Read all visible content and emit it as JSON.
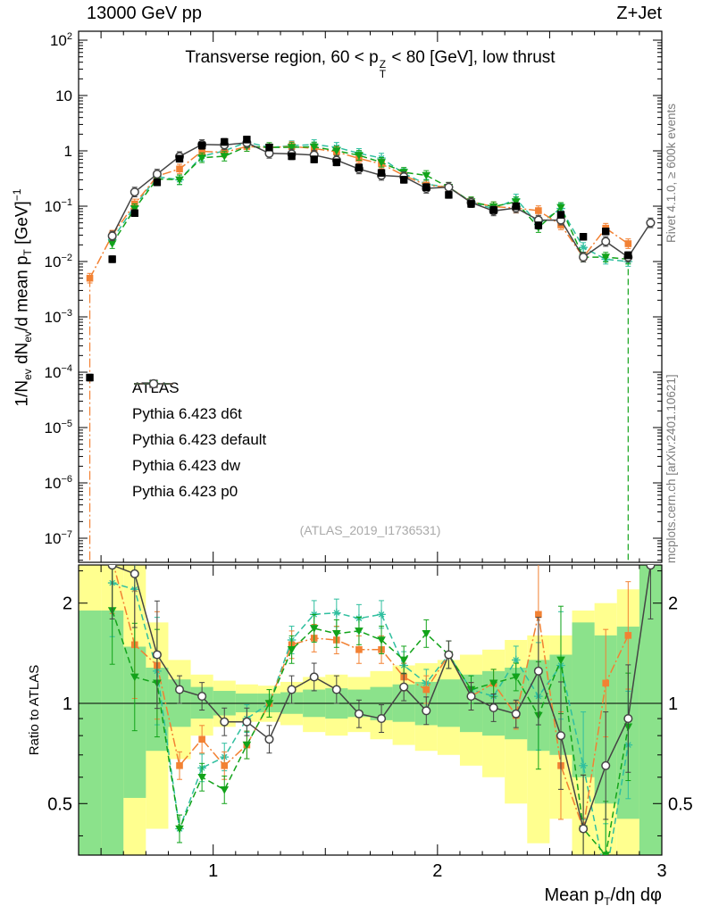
{
  "header": {
    "left": "13000 GeV pp",
    "right": "Z+Jet"
  },
  "titles": {
    "panel_title": "Transverse region, 60 < pTZ < 80 [GeV], low thrust",
    "panel_title_parts": [
      {
        "t": "Transverse region, 60 < p"
      },
      {
        "s": "stack",
        "top": "Z",
        "bottom": "T"
      },
      {
        "t": " < 80 [GeV], low thrust"
      }
    ],
    "watermark": "(ATLAS_2019_I1736531)",
    "rivet_note": "Rivet 4.1.0, ≥ 600k events",
    "mcplots_note": "mcplots.cern.ch [arXiv:2401.10621]"
  },
  "axes": {
    "x": {
      "label": "Mean pT/dη dφ",
      "label_parts": [
        {
          "t": "Mean p"
        },
        {
          "t": "T",
          "s": "sub"
        },
        {
          "t": "/dη dφ"
        }
      ],
      "min": 0.4,
      "max": 3.0,
      "major_ticks": [
        1,
        2,
        3
      ]
    },
    "y_main": {
      "label": "1/Nev dNev/d mean pT [GeV]−1",
      "label_parts": [
        {
          "t": "1/N"
        },
        {
          "t": "ev",
          "s": "sub"
        },
        {
          "t": " dN"
        },
        {
          "t": "ev",
          "s": "sub"
        },
        {
          "t": "/d mean p"
        },
        {
          "t": "T",
          "s": "sub"
        },
        {
          "t": " [GeV]"
        },
        {
          "t": "−1",
          "s": "sup"
        }
      ],
      "scale": "log",
      "tick_exponents": [
        2,
        1,
        0,
        -1,
        -2,
        -3,
        -4,
        -5,
        -6,
        -7
      ]
    },
    "y_ratio": {
      "label": "Ratio to ATLAS",
      "scale": "log",
      "min": 0.35,
      "max": 2.6,
      "ticks": [
        {
          "v": 0.5,
          "label": "0.5"
        },
        {
          "v": 1,
          "label": "1"
        },
        {
          "v": 2,
          "label": "2"
        }
      ],
      "minor_ticks": [
        0.4,
        0.6,
        0.7,
        0.8,
        0.9,
        2.5
      ]
    }
  },
  "colors": {
    "band_yellow": "#ffff8f",
    "band_green": "#8be28b",
    "atlas": "#000000",
    "d6t": "#2fbf9f",
    "default": "#f28133",
    "dw": "#12a31a",
    "p0": "#444444",
    "frame": "#000000",
    "note_gray": "#7d7d7d"
  },
  "chart_data": {
    "type": "line",
    "title": "Transverse region, 60 < pTZ < 80 [GeV], low thrust",
    "xlabel": "Mean pT/dη dφ",
    "ylabel": "1/Nev dNev/d mean pT [GeV]−1",
    "ratio_ylabel": "Ratio to ATLAS",
    "xlim": [
      0.4,
      3.0
    ],
    "ylim_main": [
      4e-08,
      150
    ],
    "ylim_ratio": [
      0.35,
      2.6
    ],
    "x": [
      0.45,
      0.55,
      0.65,
      0.75,
      0.85,
      0.95,
      1.05,
      1.15,
      1.25,
      1.35,
      1.45,
      1.55,
      1.65,
      1.75,
      1.85,
      1.95,
      2.05,
      2.15,
      2.25,
      2.35,
      2.45,
      2.55,
      2.65,
      2.75,
      2.85,
      2.95
    ],
    "reference": {
      "name": "ATLAS",
      "key": "atlas",
      "color": "#000000",
      "line": "none",
      "marker": "filled-square",
      "values": [
        8e-05,
        0.011,
        0.075,
        0.27,
        0.72,
        1.25,
        1.45,
        1.6,
        1.15,
        0.8,
        0.7,
        0.62,
        0.5,
        0.4,
        0.3,
        0.22,
        0.16,
        0.11,
        0.085,
        0.1,
        0.045,
        0.07,
        0.028,
        0.035,
        0.013,
        null
      ]
    },
    "series": [
      {
        "name": "Pythia 6.423 d6t",
        "key": "d6t",
        "color": "#2fbf9f",
        "line": "dashed",
        "marker": "asterisk",
        "values": [
          null,
          0.025,
          0.1,
          0.34,
          0.3,
          0.8,
          1.0,
          1.44,
          1.15,
          1.24,
          1.3,
          1.16,
          0.9,
          0.74,
          0.39,
          0.25,
          0.22,
          0.12,
          0.089,
          0.135,
          0.047,
          0.091,
          0.018,
          0.011,
          0.01,
          null
        ],
        "ratio": [
          null,
          2.3,
          2.2,
          1.25,
          0.42,
          0.64,
          0.69,
          0.9,
          1.0,
          1.55,
          1.85,
          1.87,
          1.8,
          1.85,
          1.3,
          1.15,
          1.4,
          1.1,
          1.05,
          1.35,
          1.05,
          1.3,
          0.65,
          0.3,
          0.75,
          null
        ]
      },
      {
        "name": "Pythia 6.423 default",
        "key": "default",
        "color": "#f28133",
        "line": "dashdot",
        "marker": "filled-square",
        "values": [
          0.005,
          0.03,
          0.11,
          0.35,
          0.47,
          0.98,
          0.94,
          1.2,
          1.15,
          1.2,
          1.1,
          0.96,
          0.73,
          0.58,
          0.36,
          0.24,
          0.22,
          0.12,
          0.098,
          0.092,
          0.083,
          0.046,
          0.012,
          0.04,
          0.021,
          null
        ],
        "ratio": [
          null,
          2.7,
          1.5,
          1.3,
          0.65,
          0.78,
          0.65,
          0.75,
          1.0,
          1.5,
          1.57,
          1.55,
          1.45,
          1.45,
          1.2,
          1.1,
          1.4,
          1.05,
          1.15,
          0.92,
          1.85,
          0.65,
          0.42,
          1.15,
          1.6,
          null
        ]
      },
      {
        "name": "Pythia 6.423 dw",
        "key": "dw",
        "color": "#12a31a",
        "line": "dashed",
        "marker": "triangle-down",
        "values": [
          null,
          0.021,
          0.09,
          0.31,
          0.3,
          0.75,
          0.8,
          1.2,
          1.15,
          1.16,
          1.18,
          1.0,
          0.83,
          0.62,
          0.41,
          0.36,
          0.22,
          0.12,
          0.098,
          0.12,
          0.041,
          0.095,
          0.012,
          0.012,
          0.011,
          null
        ],
        "ratio": [
          null,
          1.9,
          1.2,
          1.15,
          0.42,
          0.6,
          0.55,
          0.75,
          1.0,
          1.45,
          1.68,
          1.62,
          1.65,
          1.55,
          1.35,
          1.62,
          1.4,
          1.1,
          1.15,
          1.2,
          0.92,
          1.35,
          0.42,
          0.35,
          0.85,
          null
        ]
      },
      {
        "name": "Pythia 6.423 p0",
        "key": "p0",
        "color": "#444444",
        "line": "solid",
        "marker": "open-circle",
        "values": [
          null,
          0.029,
          0.18,
          0.38,
          0.79,
          1.3,
          1.28,
          1.4,
          0.9,
          0.88,
          0.84,
          0.68,
          0.47,
          0.36,
          0.34,
          0.21,
          0.22,
          0.116,
          0.082,
          0.093,
          0.056,
          0.056,
          0.012,
          0.023,
          0.012,
          0.05
        ],
        "ratio": [
          null,
          2.6,
          2.45,
          1.4,
          1.1,
          1.05,
          0.88,
          0.88,
          0.78,
          1.1,
          1.2,
          1.1,
          0.93,
          0.9,
          1.12,
          0.95,
          1.4,
          1.05,
          0.97,
          0.93,
          1.25,
          0.8,
          0.42,
          0.65,
          0.9,
          2.6
        ]
      }
    ],
    "ratio_bands": {
      "yellow": [
        [
          0.3,
          2.6
        ],
        [
          0.3,
          2.6
        ],
        [
          0.3,
          2.6
        ],
        [
          0.42,
          1.75
        ],
        [
          0.68,
          1.35
        ],
        [
          0.8,
          1.22
        ],
        [
          0.85,
          1.17
        ],
        [
          0.88,
          1.14
        ],
        [
          0.88,
          1.13
        ],
        [
          0.86,
          1.16
        ],
        [
          0.82,
          1.2
        ],
        [
          0.8,
          1.22
        ],
        [
          0.82,
          1.2
        ],
        [
          0.78,
          1.25
        ],
        [
          0.75,
          1.3
        ],
        [
          0.72,
          1.32
        ],
        [
          0.7,
          1.35
        ],
        [
          0.65,
          1.4
        ],
        [
          0.6,
          1.45
        ],
        [
          0.5,
          1.55
        ],
        [
          0.38,
          1.6
        ],
        [
          0.45,
          1.6
        ],
        [
          0.35,
          1.9
        ],
        [
          0.35,
          2.0
        ],
        [
          0.3,
          2.2
        ],
        [
          0.3,
          2.6
        ]
      ],
      "green": [
        [
          0.3,
          1.9
        ],
        [
          0.3,
          1.9
        ],
        [
          0.52,
          1.48
        ],
        [
          0.72,
          1.28
        ],
        [
          0.85,
          1.18
        ],
        [
          0.9,
          1.12
        ],
        [
          0.92,
          1.09
        ],
        [
          0.94,
          1.07
        ],
        [
          0.94,
          1.07
        ],
        [
          0.93,
          1.08
        ],
        [
          0.91,
          1.1
        ],
        [
          0.9,
          1.11
        ],
        [
          0.91,
          1.1
        ],
        [
          0.89,
          1.12
        ],
        [
          0.88,
          1.14
        ],
        [
          0.86,
          1.16
        ],
        [
          0.85,
          1.18
        ],
        [
          0.82,
          1.22
        ],
        [
          0.8,
          1.25
        ],
        [
          0.78,
          1.28
        ],
        [
          0.72,
          1.35
        ],
        [
          0.7,
          1.4
        ],
        [
          0.6,
          1.75
        ],
        [
          0.5,
          1.6
        ],
        [
          0.45,
          1.7
        ],
        [
          0.3,
          2.6
        ]
      ]
    },
    "drop_lines": [
      {
        "x": 0.45,
        "series": "default",
        "from": 0.005,
        "panel": "main"
      },
      {
        "x": 2.85,
        "series": "dw",
        "from": 0.011,
        "panel": "main"
      }
    ],
    "legend_order": [
      "atlas",
      "d6t",
      "default",
      "dw",
      "p0"
    ]
  }
}
